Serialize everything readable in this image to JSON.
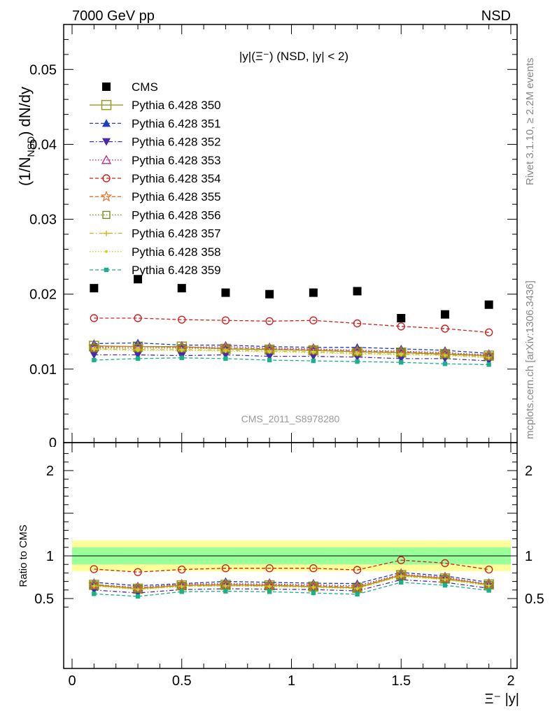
{
  "header": {
    "energy_label": "7000 GeV pp",
    "process_label": "NSD"
  },
  "side_labels": {
    "rivet": "Rivet 3.1.10, ≥ 2.2M events",
    "mcplots": "mcplots.cern.ch [arXiv:1306.3436]"
  },
  "watermark": "CMS_2011_S8978280",
  "chart_data": [
    {
      "type": "scatter",
      "title": "|y|(Ξ⁻) (NSD, |y| < 2)",
      "ylabel": "(1/N_NSD) dN/dy",
      "xlim": [
        0,
        2
      ],
      "ylim": [
        0,
        0.056
      ],
      "y_ticks": [
        {
          "value": 0.01,
          "label": "0.01"
        },
        {
          "value": 0.02,
          "label": "0.02"
        },
        {
          "value": 0.03,
          "label": "0.03"
        },
        {
          "value": 0.04,
          "label": "0.04"
        },
        {
          "value": 0.05,
          "label": "0.05"
        }
      ],
      "y_zero_label": "0",
      "x": [
        0.1,
        0.3,
        0.5,
        0.7,
        0.9,
        1.1,
        1.3,
        1.5,
        1.7,
        1.9
      ],
      "series": [
        {
          "name": "CMS",
          "color": "#000000",
          "marker": "square-filled",
          "line": "none",
          "values": [
            0.0208,
            0.022,
            0.0208,
            0.0202,
            0.02,
            0.0202,
            0.0204,
            0.0168,
            0.0173,
            0.0186
          ]
        },
        {
          "name": "Pythia 6.428 350",
          "color": "#9a9a1e",
          "marker": "square-open-large",
          "line": "solid",
          "values": [
            0.0131,
            0.013,
            0.013,
            0.0127,
            0.0126,
            0.0125,
            0.0123,
            0.0122,
            0.012,
            0.0118
          ]
        },
        {
          "name": "Pythia 6.428 351",
          "color": "#1f3fbf",
          "marker": "triangle-up-filled",
          "line": "dashed",
          "values": [
            0.0134,
            0.0135,
            0.0132,
            0.0132,
            0.013,
            0.0129,
            0.0129,
            0.0127,
            0.0125,
            0.0121
          ]
        },
        {
          "name": "Pythia 6.428 352",
          "color": "#4a2aa8",
          "marker": "triangle-down-filled",
          "line": "dashdot",
          "values": [
            0.0119,
            0.0119,
            0.0118,
            0.0119,
            0.0117,
            0.0117,
            0.0116,
            0.0114,
            0.0114,
            0.0111
          ]
        },
        {
          "name": "Pythia 6.428 353",
          "color": "#b0288a",
          "marker": "triangle-up-open",
          "line": "dotted",
          "values": [
            0.0129,
            0.013,
            0.0129,
            0.013,
            0.0128,
            0.0127,
            0.0125,
            0.0124,
            0.0122,
            0.0119
          ]
        },
        {
          "name": "Pythia 6.428 354",
          "color": "#d42020",
          "marker": "circle-open",
          "line": "dashed",
          "values": [
            0.0168,
            0.0168,
            0.0166,
            0.0165,
            0.0164,
            0.0165,
            0.0161,
            0.0157,
            0.0154,
            0.0149
          ]
        },
        {
          "name": "Pythia 6.428 355",
          "color": "#e8702a",
          "marker": "star-open",
          "line": "dashed",
          "values": [
            0.013,
            0.013,
            0.0129,
            0.0128,
            0.0127,
            0.0126,
            0.0124,
            0.0123,
            0.0121,
            0.0118
          ]
        },
        {
          "name": "Pythia 6.428 356",
          "color": "#7a8a1a",
          "marker": "square-open",
          "line": "dotted",
          "values": [
            0.0128,
            0.0128,
            0.0128,
            0.0127,
            0.0126,
            0.0125,
            0.0123,
            0.0122,
            0.012,
            0.0117
          ]
        },
        {
          "name": "Pythia 6.428 357",
          "color": "#d4b21a",
          "marker": "plus",
          "line": "dashdot",
          "values": [
            0.0127,
            0.0126,
            0.0126,
            0.0125,
            0.0124,
            0.0123,
            0.0121,
            0.012,
            0.0119,
            0.0116
          ]
        },
        {
          "name": "Pythia 6.428 358",
          "color": "#c8d42a",
          "marker": "dot",
          "line": "dotted",
          "values": [
            0.0126,
            0.0125,
            0.0125,
            0.0124,
            0.0123,
            0.0122,
            0.012,
            0.0119,
            0.0118,
            0.0115
          ]
        },
        {
          "name": "Pythia 6.428 359",
          "color": "#1ab08a",
          "marker": "square-filled-small",
          "line": "dashed",
          "values": [
            0.0112,
            0.0114,
            0.0115,
            0.0114,
            0.0112,
            0.0111,
            0.011,
            0.0109,
            0.0107,
            0.0106
          ]
        }
      ]
    },
    {
      "type": "line",
      "ylabel": "Ratio to CMS",
      "xlabel": "Ξ⁻ |y|",
      "xlim": [
        0,
        2
      ],
      "ylim": [
        0.34,
        2.26
      ],
      "x_ticks": [
        {
          "value": 0,
          "label": "0"
        },
        {
          "value": 0.5,
          "label": "0.5"
        },
        {
          "value": 1,
          "label": "1"
        },
        {
          "value": 1.5,
          "label": "1.5"
        },
        {
          "value": 2,
          "label": "2"
        }
      ],
      "y_ticks": [
        {
          "value": 0.5,
          "label": "0.5"
        },
        {
          "value": 1,
          "label": "1"
        },
        {
          "value": 2,
          "label": "2"
        }
      ],
      "reference_line": 1,
      "bands": {
        "yellow": {
          "color": "#ffff99",
          "upper": [
            1.18,
            1.18,
            1.18,
            1.18,
            1.18,
            1.18,
            1.18,
            1.18,
            1.18,
            1.18
          ],
          "lower": [
            0.82,
            0.82,
            0.82,
            0.82,
            0.82,
            0.82,
            0.82,
            0.82,
            0.82,
            0.82
          ]
        },
        "green": {
          "color": "#99ff99",
          "upper": [
            1.1,
            1.1,
            1.1,
            1.1,
            1.1,
            1.1,
            1.1,
            1.1,
            1.1,
            1.1
          ],
          "lower": [
            0.9,
            0.9,
            0.9,
            0.9,
            0.9,
            0.9,
            0.9,
            0.9,
            0.9,
            0.9
          ]
        }
      },
      "x": [
        0.1,
        0.3,
        0.5,
        0.7,
        0.9,
        1.1,
        1.3,
        1.5,
        1.7,
        1.9
      ],
      "series": [
        {
          "name": "Pythia 6.428 350",
          "values": [
            0.66,
            0.615,
            0.655,
            0.66,
            0.655,
            0.64,
            0.625,
            0.775,
            0.735,
            0.665
          ]
        },
        {
          "name": "Pythia 6.428 351",
          "values": [
            0.69,
            0.65,
            0.675,
            0.7,
            0.69,
            0.68,
            0.675,
            0.805,
            0.765,
            0.69
          ]
        },
        {
          "name": "Pythia 6.428 352",
          "values": [
            0.6,
            0.565,
            0.605,
            0.615,
            0.61,
            0.605,
            0.59,
            0.72,
            0.69,
            0.62
          ]
        },
        {
          "name": "Pythia 6.428 353",
          "values": [
            0.665,
            0.63,
            0.67,
            0.675,
            0.67,
            0.66,
            0.65,
            0.785,
            0.75,
            0.67
          ]
        },
        {
          "name": "Pythia 6.428 354",
          "values": [
            0.845,
            0.81,
            0.84,
            0.855,
            0.855,
            0.855,
            0.835,
            0.95,
            0.915,
            0.84
          ]
        },
        {
          "name": "Pythia 6.428 355",
          "values": [
            0.665,
            0.625,
            0.66,
            0.665,
            0.66,
            0.65,
            0.635,
            0.78,
            0.74,
            0.665
          ]
        },
        {
          "name": "Pythia 6.428 356",
          "values": [
            0.655,
            0.615,
            0.65,
            0.655,
            0.65,
            0.64,
            0.625,
            0.77,
            0.73,
            0.66
          ]
        },
        {
          "name": "Pythia 6.428 357",
          "values": [
            0.65,
            0.61,
            0.645,
            0.65,
            0.645,
            0.635,
            0.62,
            0.765,
            0.725,
            0.655
          ]
        },
        {
          "name": "Pythia 6.428 358",
          "values": [
            0.645,
            0.605,
            0.64,
            0.645,
            0.64,
            0.63,
            0.615,
            0.76,
            0.72,
            0.65
          ]
        },
        {
          "name": "Pythia 6.428 359",
          "values": [
            0.555,
            0.525,
            0.58,
            0.585,
            0.58,
            0.565,
            0.55,
            0.69,
            0.655,
            0.595
          ]
        }
      ]
    }
  ]
}
